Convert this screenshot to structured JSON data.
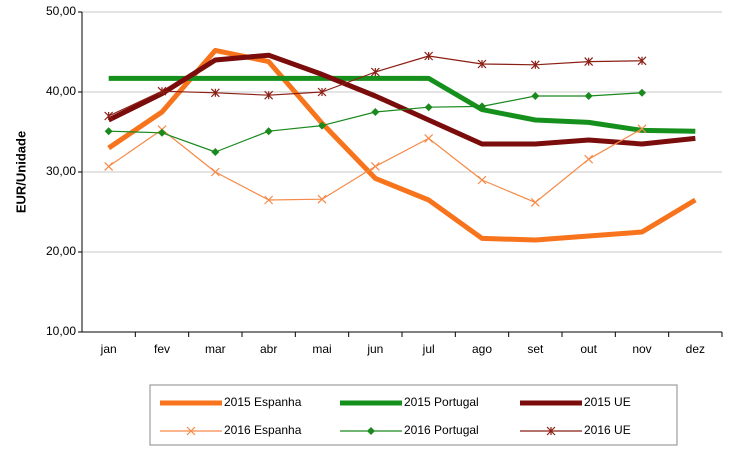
{
  "chart_data": {
    "type": "line",
    "y_label": "EUR/Unidade",
    "categories": [
      "jan",
      "fev",
      "mar",
      "abr",
      "mai",
      "jun",
      "jul",
      "ago",
      "set",
      "out",
      "nov",
      "dez"
    ],
    "ylim": [
      10,
      50
    ],
    "yticks": [
      {
        "value": 10,
        "label": "10,00"
      },
      {
        "value": 20,
        "label": "20,00"
      },
      {
        "value": 30,
        "label": "30,00"
      },
      {
        "value": 40,
        "label": "40,00"
      },
      {
        "value": 50,
        "label": "50,00"
      }
    ],
    "grid": true,
    "legend": "bottom",
    "series": [
      {
        "name": "2015 Espanha",
        "color": "#f7731c",
        "width": 5,
        "marker": "none",
        "values": [
          33.0,
          37.5,
          45.2,
          43.8,
          36.1,
          29.2,
          26.5,
          21.7,
          21.5,
          22.0,
          22.5,
          26.5
        ]
      },
      {
        "name": "2015 Portugal",
        "color": "#16901c",
        "width": 5,
        "marker": "none",
        "values": [
          41.7,
          41.7,
          41.7,
          41.7,
          41.7,
          41.7,
          41.7,
          37.8,
          36.5,
          36.2,
          35.2,
          35.1
        ]
      },
      {
        "name": "2015 UE",
        "color": "#7a0c0c",
        "width": 5,
        "marker": "none",
        "values": [
          36.5,
          39.8,
          44.0,
          44.6,
          42.2,
          39.5,
          36.5,
          33.5,
          33.5,
          34.0,
          33.5,
          34.2
        ]
      },
      {
        "name": "2016 Espanha",
        "color": "#f58a48",
        "width": 1.2,
        "marker": "x",
        "values": [
          30.7,
          35.3,
          30.0,
          26.5,
          26.6,
          30.7,
          34.2,
          29.0,
          26.2,
          31.6,
          35.4,
          null
        ]
      },
      {
        "name": "2016 Portugal",
        "color": "#1a8a1e",
        "width": 1.2,
        "marker": "diamond",
        "values": [
          35.1,
          34.9,
          32.5,
          35.1,
          35.8,
          37.5,
          38.1,
          38.2,
          39.5,
          39.5,
          39.9,
          null
        ]
      },
      {
        "name": "2016 UE",
        "color": "#8b1f14",
        "width": 1.2,
        "marker": "star",
        "values": [
          37.0,
          40.1,
          39.9,
          39.6,
          40.0,
          42.5,
          44.5,
          43.5,
          43.4,
          43.8,
          43.9,
          null
        ]
      }
    ]
  }
}
